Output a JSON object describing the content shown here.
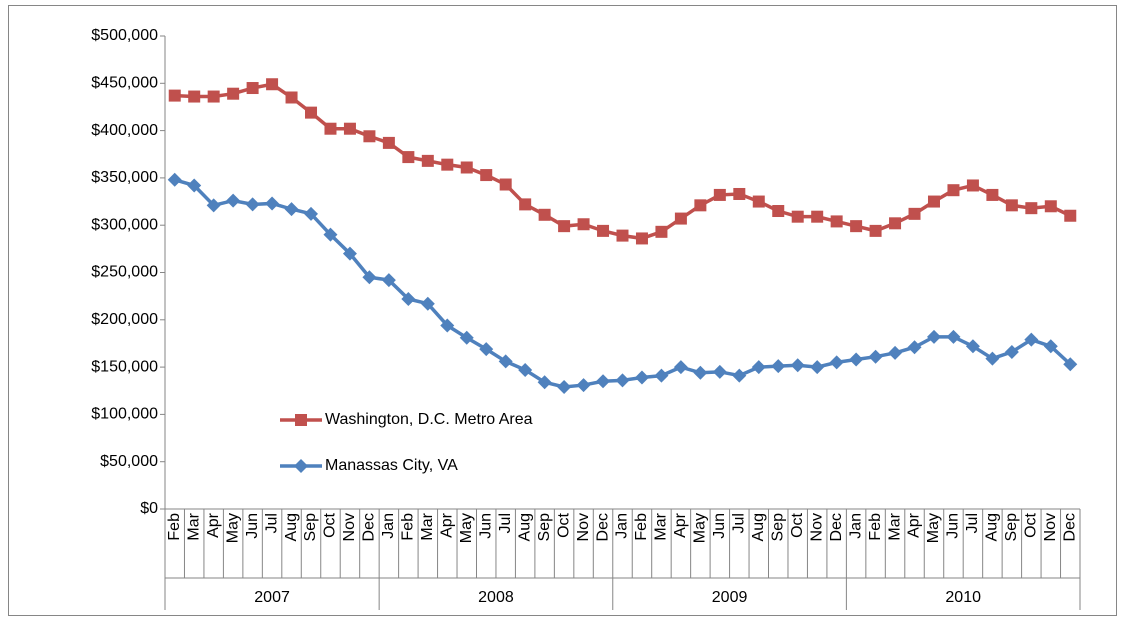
{
  "chart_data": {
    "type": "line",
    "category_groups": [
      {
        "name": "2007",
        "categories": [
          "Feb",
          "Mar",
          "Apr",
          "May",
          "Jun",
          "Jul",
          "Aug",
          "Sep",
          "Oct",
          "Nov",
          "Dec"
        ]
      },
      {
        "name": "2008",
        "categories": [
          "Jan",
          "Feb",
          "Mar",
          "Apr",
          "May",
          "Jun",
          "Jul",
          "Aug",
          "Sep",
          "Oct",
          "Nov",
          "Dec"
        ]
      },
      {
        "name": "2009",
        "categories": [
          "Jan",
          "Feb",
          "Mar",
          "Apr",
          "May",
          "Jun",
          "Jul",
          "Aug",
          "Sep",
          "Oct",
          "Nov",
          "Dec"
        ]
      },
      {
        "name": "2010",
        "categories": [
          "Jan",
          "Feb",
          "Mar",
          "Apr",
          "May",
          "Jun",
          "Jul",
          "Aug",
          "Sep",
          "Oct",
          "Nov",
          "Dec"
        ]
      }
    ],
    "series": [
      {
        "name": "Washington, D.C. Metro Area",
        "color": "#c0504d",
        "marker": "square",
        "values": [
          437000,
          436000,
          436000,
          439000,
          445000,
          449000,
          435000,
          419000,
          402000,
          402000,
          394000,
          387000,
          372000,
          368000,
          364000,
          361000,
          353000,
          343000,
          322000,
          311000,
          299000,
          301000,
          294000,
          289000,
          286000,
          293000,
          307000,
          321000,
          332000,
          333000,
          325000,
          315000,
          309000,
          309000,
          304000,
          299000,
          294000,
          302000,
          312000,
          325000,
          337000,
          342000,
          332000,
          321000,
          318000,
          320000,
          310000
        ]
      },
      {
        "name": "Manassas City, VA",
        "color": "#4f81bd",
        "marker": "diamond",
        "values": [
          348000,
          342000,
          321000,
          326000,
          322000,
          323000,
          317000,
          312000,
          290000,
          270000,
          245000,
          242000,
          222000,
          217000,
          194000,
          181000,
          169000,
          156000,
          147000,
          134000,
          129000,
          131000,
          135000,
          136000,
          139000,
          141000,
          150000,
          144000,
          145000,
          141000,
          150000,
          151000,
          152000,
          150000,
          155000,
          158000,
          161000,
          165000,
          171000,
          182000,
          182000,
          172000,
          159000,
          166000,
          179000,
          172000,
          153000
        ]
      }
    ],
    "ylim": [
      0,
      500000
    ],
    "yticks": [
      {
        "value": 0,
        "label": "$0"
      },
      {
        "value": 50000,
        "label": "$50,000"
      },
      {
        "value": 100000,
        "label": "$100,000"
      },
      {
        "value": 150000,
        "label": "$150,000"
      },
      {
        "value": 200000,
        "label": "$200,000"
      },
      {
        "value": 250000,
        "label": "$250,000"
      },
      {
        "value": 300000,
        "label": "$300,000"
      },
      {
        "value": 350000,
        "label": "$350,000"
      },
      {
        "value": 400000,
        "label": "$400,000"
      },
      {
        "value": 450000,
        "label": "$450,000"
      },
      {
        "value": 500000,
        "label": "$500,000"
      }
    ],
    "grid": false,
    "legend": "inside-left"
  }
}
